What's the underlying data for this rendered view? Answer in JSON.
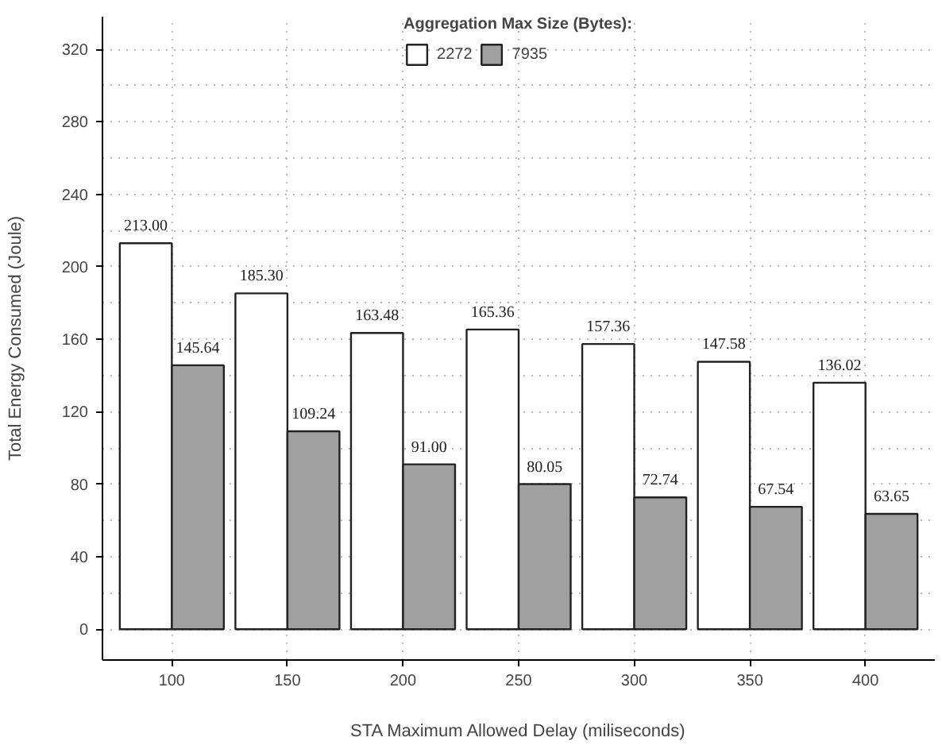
{
  "chart_data": {
    "type": "bar",
    "xlabel": "STA Maximum Allowed Delay (miliseconds)",
    "ylabel": "Total Energy Consumed (Joule)",
    "legend_title": "Aggregation Max Size (Bytes):",
    "categories": [
      "100",
      "150",
      "200",
      "250",
      "300",
      "350",
      "400"
    ],
    "series": [
      {
        "name": "2272",
        "color": "#ffffff",
        "values": [
          213.0,
          185.3,
          163.48,
          165.36,
          157.36,
          147.58,
          136.02
        ],
        "value_labels": [
          "213.00",
          "185.30",
          "163.48",
          "165.36",
          "157.36",
          "147.58",
          "136.02"
        ]
      },
      {
        "name": "7935",
        "color": "#a0a0a0",
        "values": [
          145.64,
          109.24,
          91.0,
          80.05,
          72.74,
          67.54,
          63.65
        ],
        "value_labels": [
          "145.64",
          "109.24",
          "91.00",
          "80.05",
          "72.74",
          "67.54",
          "63.65"
        ]
      }
    ],
    "ylim": [
      -17,
      338
    ],
    "yticks": [
      0,
      40,
      80,
      120,
      160,
      200,
      240,
      280,
      320
    ],
    "grid": true,
    "legend": "top"
  }
}
